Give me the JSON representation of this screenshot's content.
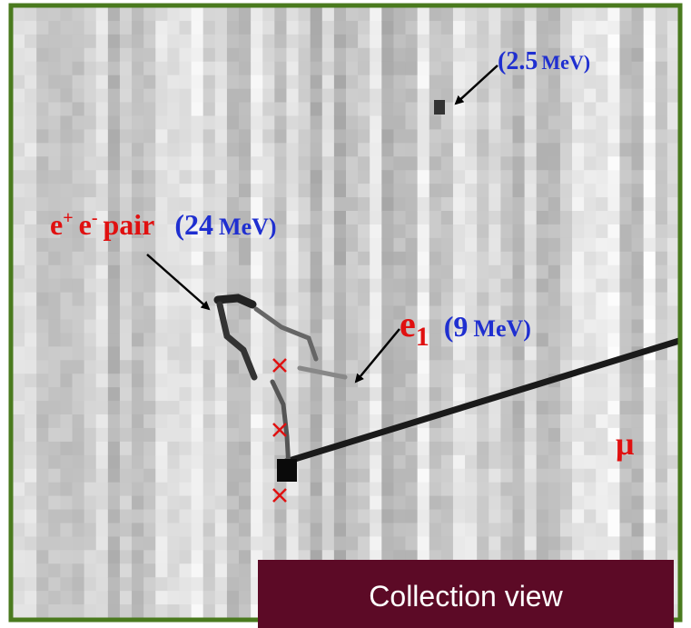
{
  "annotations": {
    "low_energy": {
      "value": "(2.5",
      "unit": "MeV)"
    },
    "pair": {
      "e1": "e",
      "sup1": "+",
      "e2": "e",
      "sup2": "-",
      "word": "pair",
      "value": "(24",
      "unit": "MeV)"
    },
    "electron": {
      "base": "e",
      "sub": "1",
      "value": "(9",
      "unit": "MeV)"
    },
    "muon": "μ"
  },
  "view_label": "Collection view"
}
